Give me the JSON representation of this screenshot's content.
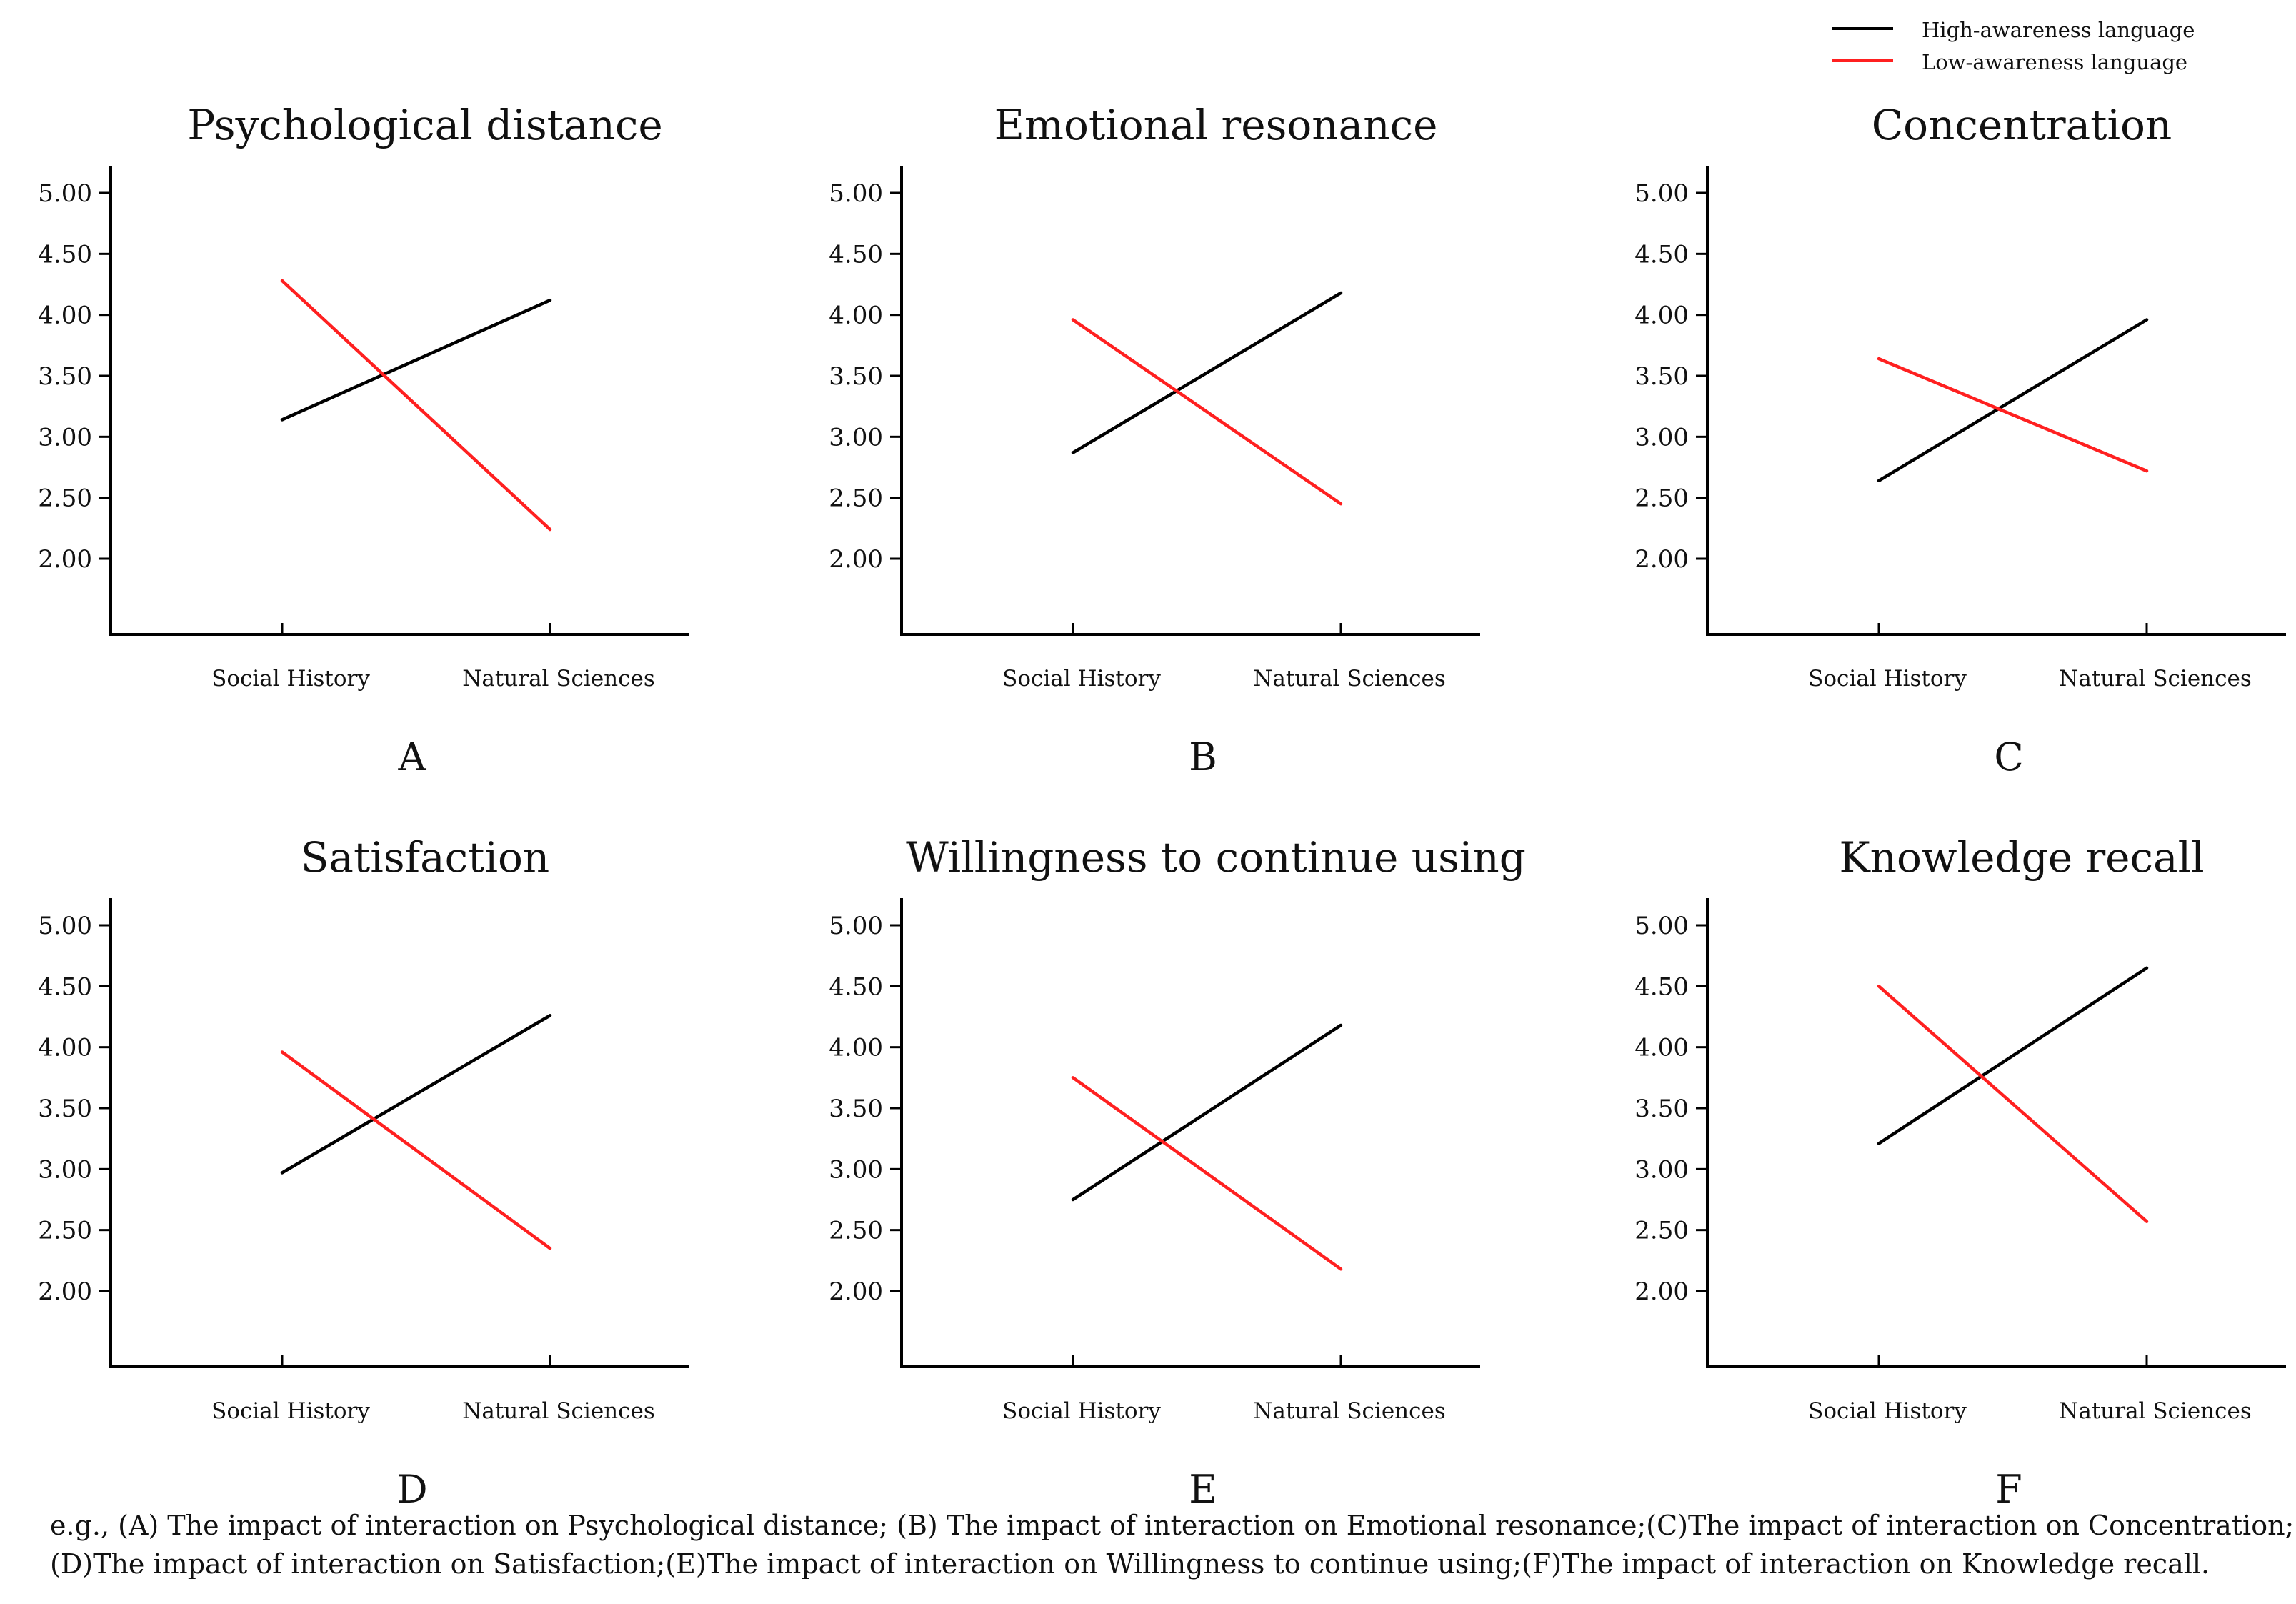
{
  "legend": {
    "items": [
      {
        "label": "High-awareness language",
        "color": "#000000"
      },
      {
        "label": "Low-awareness language",
        "color": "#ff2020"
      }
    ]
  },
  "chart_data": [
    {
      "type": "line",
      "panel_letter": "A",
      "title": "Psychological distance",
      "categories": [
        "Social History",
        "Natural Sciences"
      ],
      "y_ticks": [
        "5.00",
        "4.50",
        "4.00",
        "3.50",
        "3.00",
        "2.50",
        "2.00"
      ],
      "ylim": [
        1.4,
        5.2
      ],
      "series": [
        {
          "name": "High-awareness language",
          "values": [
            3.14,
            4.12
          ]
        },
        {
          "name": "Low-awareness language",
          "values": [
            4.28,
            2.24
          ]
        }
      ]
    },
    {
      "type": "line",
      "panel_letter": "B",
      "title": "Emotional resonance",
      "categories": [
        "Social History",
        "Natural Sciences"
      ],
      "y_ticks": [
        "5.00",
        "4.50",
        "4.00",
        "3.50",
        "3.00",
        "2.50",
        "2.00"
      ],
      "ylim": [
        1.4,
        5.2
      ],
      "series": [
        {
          "name": "High-awareness language",
          "values": [
            2.87,
            4.18
          ]
        },
        {
          "name": "Low-awareness language",
          "values": [
            3.96,
            2.45
          ]
        }
      ]
    },
    {
      "type": "line",
      "panel_letter": "C",
      "title": "Concentration",
      "categories": [
        "Social History",
        "Natural Sciences"
      ],
      "y_ticks": [
        "5.00",
        "4.50",
        "4.00",
        "3.50",
        "3.00",
        "2.50",
        "2.00"
      ],
      "ylim": [
        1.4,
        5.2
      ],
      "series": [
        {
          "name": "High-awareness language",
          "values": [
            2.64,
            3.96
          ]
        },
        {
          "name": "Low-awareness language",
          "values": [
            3.64,
            2.72
          ]
        }
      ]
    },
    {
      "type": "line",
      "panel_letter": "D",
      "title": "Satisfaction",
      "categories": [
        "Social History",
        "Natural Sciences"
      ],
      "y_ticks": [
        "5.00",
        "4.50",
        "4.00",
        "3.50",
        "3.00",
        "2.50",
        "2.00"
      ],
      "ylim": [
        1.4,
        5.2
      ],
      "series": [
        {
          "name": "High-awareness language",
          "values": [
            2.97,
            4.26
          ]
        },
        {
          "name": "Low-awareness language",
          "values": [
            3.96,
            2.35
          ]
        }
      ]
    },
    {
      "type": "line",
      "panel_letter": "E",
      "title": "Willingness to continue using",
      "categories": [
        "Social History",
        "Natural Sciences"
      ],
      "y_ticks": [
        "5.00",
        "4.50",
        "4.00",
        "3.50",
        "3.00",
        "2.50",
        "2.00"
      ],
      "ylim": [
        1.4,
        5.2
      ],
      "series": [
        {
          "name": "High-awareness language",
          "values": [
            2.75,
            4.18
          ]
        },
        {
          "name": "Low-awareness language",
          "values": [
            3.75,
            2.18
          ]
        }
      ]
    },
    {
      "type": "line",
      "panel_letter": "F",
      "title": "Knowledge recall",
      "categories": [
        "Social History",
        "Natural Sciences"
      ],
      "y_ticks": [
        "5.00",
        "4.50",
        "4.00",
        "3.50",
        "3.00",
        "2.50",
        "2.00"
      ],
      "ylim": [
        1.4,
        5.2
      ],
      "series": [
        {
          "name": "High-awareness language",
          "values": [
            3.21,
            4.65
          ]
        },
        {
          "name": "Low-awareness language",
          "values": [
            4.5,
            2.57
          ]
        }
      ]
    }
  ],
  "caption": {
    "line1": "e.g., (A) The impact of interaction on Psychological distance; (B) The impact of interaction on Emotional resonance;(C)The impact of interaction on Concentration;",
    "line2": "(D)The impact of interaction on Satisfaction;(E)The impact of interaction on Willingness to continue using;(F)The impact of interaction on Knowledge recall."
  }
}
